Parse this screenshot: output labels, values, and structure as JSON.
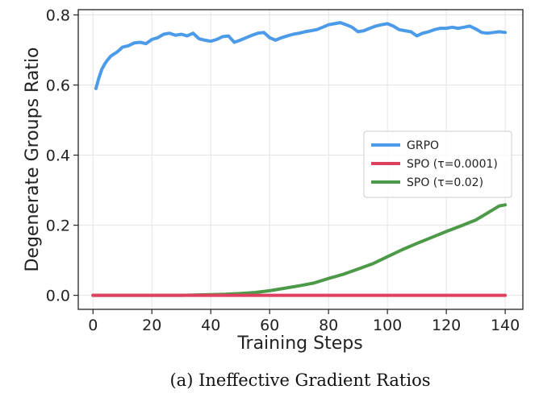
{
  "chart_data": {
    "type": "line",
    "title": "",
    "xlabel": "Training Steps",
    "ylabel": "Degenerate Groups Ratio",
    "xlim": [
      -5,
      146
    ],
    "ylim": [
      -0.04,
      0.815
    ],
    "xticks": [
      0,
      20,
      40,
      60,
      80,
      100,
      120,
      140
    ],
    "yticks": [
      0.0,
      0.2,
      0.4,
      0.6,
      0.8
    ],
    "xtick_labels": [
      "0",
      "20",
      "40",
      "60",
      "80",
      "100",
      "120",
      "140"
    ],
    "ytick_labels": [
      "0.0",
      "0.2",
      "0.4",
      "0.6",
      "0.8"
    ],
    "grid": true,
    "legend_position": "center-right",
    "series": [
      {
        "name": "GRPO",
        "color": "#4c9be8",
        "x": [
          1,
          2,
          3,
          4,
          5,
          6,
          7,
          8,
          9,
          10,
          12,
          14,
          16,
          18,
          20,
          22,
          24,
          26,
          28,
          30,
          32,
          34,
          36,
          38,
          40,
          42,
          44,
          46,
          48,
          50,
          52,
          54,
          56,
          58,
          60,
          62,
          64,
          66,
          68,
          70,
          72,
          74,
          76,
          78,
          80,
          82,
          84,
          86,
          88,
          90,
          92,
          94,
          96,
          98,
          100,
          102,
          104,
          106,
          108,
          110,
          112,
          114,
          116,
          118,
          120,
          122,
          124,
          126,
          128,
          130,
          132,
          134,
          136,
          138,
          140
        ],
        "y": [
          0.59,
          0.62,
          0.645,
          0.66,
          0.672,
          0.682,
          0.688,
          0.693,
          0.7,
          0.708,
          0.712,
          0.72,
          0.722,
          0.718,
          0.73,
          0.735,
          0.745,
          0.748,
          0.742,
          0.745,
          0.74,
          0.748,
          0.732,
          0.728,
          0.725,
          0.73,
          0.738,
          0.74,
          0.722,
          0.728,
          0.735,
          0.742,
          0.748,
          0.75,
          0.735,
          0.728,
          0.735,
          0.74,
          0.745,
          0.748,
          0.752,
          0.755,
          0.758,
          0.765,
          0.772,
          0.775,
          0.778,
          0.772,
          0.765,
          0.752,
          0.755,
          0.762,
          0.768,
          0.772,
          0.775,
          0.768,
          0.758,
          0.755,
          0.752,
          0.74,
          0.748,
          0.752,
          0.758,
          0.762,
          0.762,
          0.765,
          0.762,
          0.765,
          0.768,
          0.76,
          0.75,
          0.748,
          0.75,
          0.752,
          0.75
        ]
      },
      {
        "name": "SPO (τ=0.0001)",
        "color": "#e0405f",
        "x": [
          0,
          140
        ],
        "y": [
          0.0,
          0.0
        ]
      },
      {
        "name": "SPO (τ=0.02)",
        "color": "#4c9a48",
        "x": [
          0,
          30,
          40,
          45,
          50,
          55,
          60,
          65,
          70,
          75,
          80,
          85,
          90,
          95,
          100,
          105,
          110,
          115,
          120,
          125,
          130,
          135,
          138,
          140
        ],
        "y": [
          0.0,
          0.0,
          0.002,
          0.003,
          0.005,
          0.008,
          0.013,
          0.02,
          0.027,
          0.035,
          0.048,
          0.06,
          0.075,
          0.09,
          0.11,
          0.13,
          0.148,
          0.165,
          0.182,
          0.198,
          0.215,
          0.24,
          0.255,
          0.258
        ]
      }
    ]
  },
  "caption": "(a) Ineffective Gradient Ratios"
}
